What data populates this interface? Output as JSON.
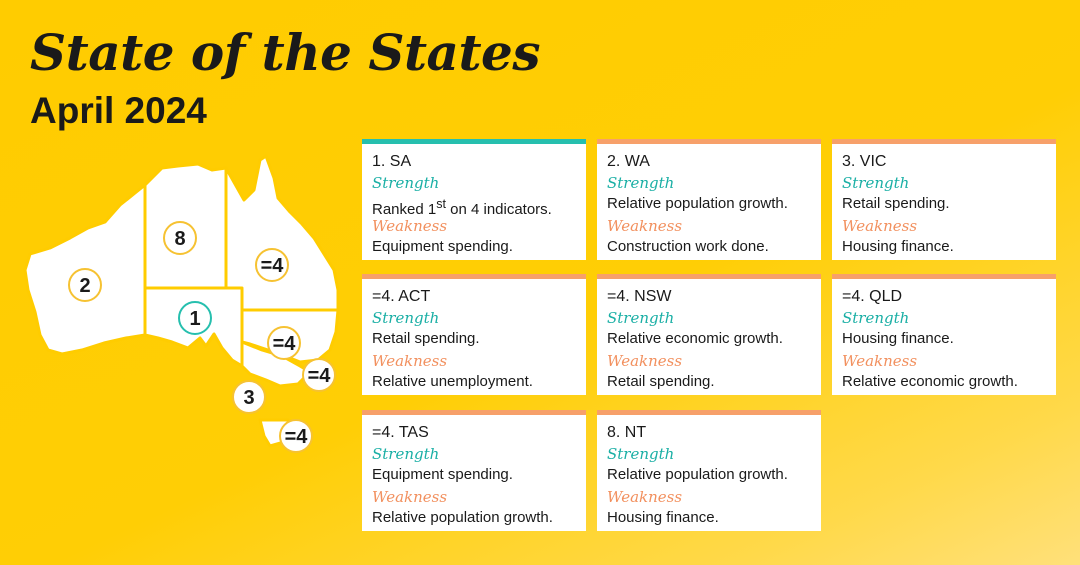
{
  "header": {
    "title": "State of the States",
    "subtitle": "April 2024"
  },
  "labels": {
    "strength": "Strength",
    "weakness": "Weakness"
  },
  "colors": {
    "background": "#FFCC00",
    "strength": "#1AAFA5",
    "weakness": "#F2905E",
    "top_border_default": "#F7A06A",
    "top_border_first": "#26BFAE"
  },
  "map": {
    "badges": [
      {
        "state": "WA",
        "rank": "2"
      },
      {
        "state": "NT",
        "rank": "8"
      },
      {
        "state": "SA",
        "rank": "1"
      },
      {
        "state": "QLD",
        "rank": "=4"
      },
      {
        "state": "NSW",
        "rank": "=4"
      },
      {
        "state": "ACT",
        "rank": "=4"
      },
      {
        "state": "VIC",
        "rank": "3"
      },
      {
        "state": "TAS",
        "rank": "=4"
      }
    ]
  },
  "cards": [
    {
      "rank_label": "1. SA",
      "strength": "Ranked 1",
      "strength_sup": "st",
      "strength_rest": " on 4 indicators.",
      "weakness": "Equipment spending."
    },
    {
      "rank_label": "2. WA",
      "strength": "Relative population growth.",
      "weakness": "Construction work done."
    },
    {
      "rank_label": "3. VIC",
      "strength": "Retail spending.",
      "weakness": "Housing finance."
    },
    {
      "rank_label": "=4. ACT",
      "strength": "Retail spending.",
      "weakness": "Relative unemployment."
    },
    {
      "rank_label": "=4. NSW",
      "strength": "Relative economic growth.",
      "weakness": "Retail spending."
    },
    {
      "rank_label": "=4. QLD",
      "strength": "Housing finance.",
      "weakness": "Relative economic growth."
    },
    {
      "rank_label": "=4. TAS",
      "strength": "Equipment spending.",
      "weakness": "Relative population growth."
    },
    {
      "rank_label": "8. NT",
      "strength": "Relative population growth.",
      "weakness": "Housing finance."
    }
  ]
}
